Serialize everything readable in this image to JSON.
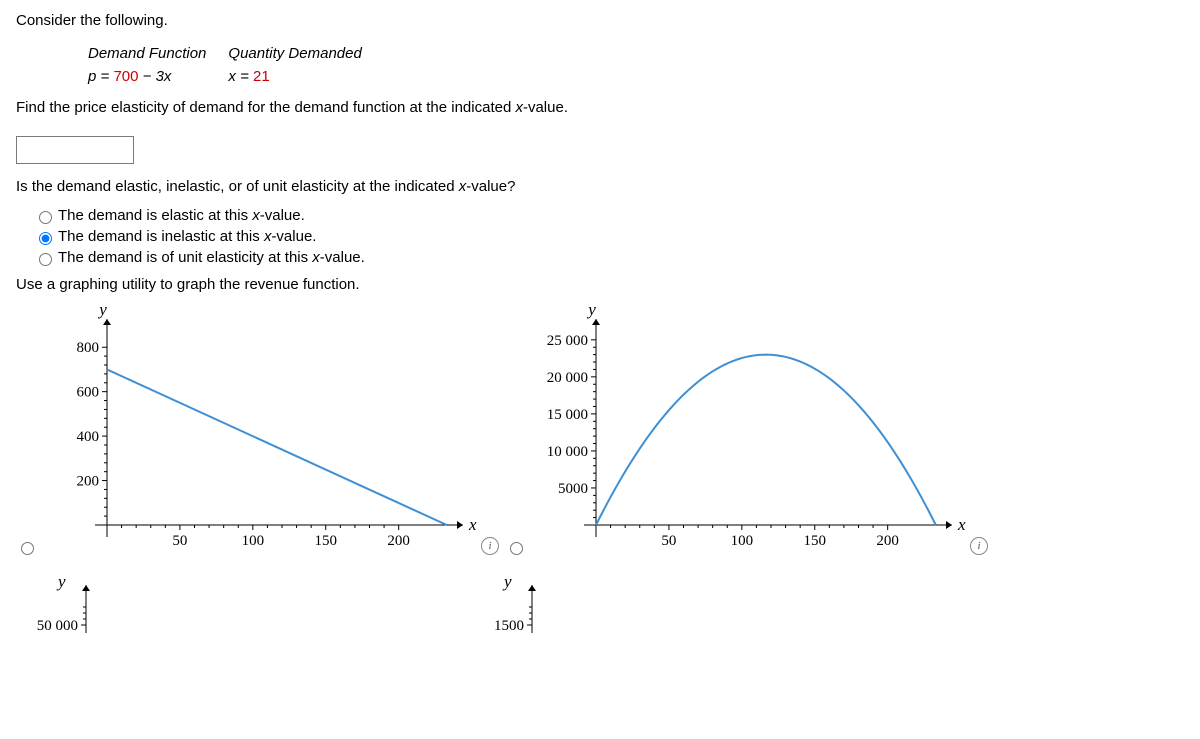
{
  "intro": "Consider the following.",
  "func_table": {
    "h1": "Demand Function",
    "h2": "Quantity Demanded",
    "r1_prefix": "p = ",
    "r1_num": "700",
    "r1_suffix": " − 3x",
    "r2_prefix": "x = ",
    "r2_num": "21"
  },
  "prompt1": "Find the price elasticity of demand for the demand function at the indicated x-value.",
  "prompt2": "Is the demand elastic, inelastic, or of unit elasticity at the indicated x-value?",
  "options": [
    "The demand is elastic at this x-value.",
    "The demand is inelastic at this x-value.",
    "The demand is of unit elasticity at this x-value."
  ],
  "selected_option": 1,
  "prompt3": "Use a graphing utility to graph the revenue function.",
  "chart1": {
    "type": "line",
    "yTicks": [
      200,
      400,
      600,
      800
    ],
    "xTicks": [
      50,
      100,
      150,
      200
    ],
    "ylim": [
      0,
      900
    ],
    "xlim": [
      0,
      240
    ],
    "line_color": "#3f8fd2",
    "line_width": 2,
    "points": [
      [
        0,
        700
      ],
      [
        233,
        0
      ]
    ],
    "axis_labels": {
      "x": "x",
      "y": "y"
    },
    "selected": false
  },
  "chart2": {
    "type": "line",
    "yTicks": [
      5000,
      10000,
      15000,
      20000,
      25000
    ],
    "yTickLabels": [
      "5000",
      "10 000",
      "15 000",
      "20 000",
      "25 000"
    ],
    "xTicks": [
      50,
      100,
      150,
      200
    ],
    "ylim": [
      0,
      27000
    ],
    "xlim": [
      0,
      240
    ],
    "line_color": "#3f8fd2",
    "line_width": 2,
    "curve": "parabola",
    "a": 0,
    "b": 233,
    "peak_y": 23000,
    "axis_labels": {
      "x": "x",
      "y": "y"
    },
    "selected": true
  },
  "chart3": {
    "type": "line",
    "yTicks": [
      50000
    ],
    "yTickLabels": [
      "50 000"
    ],
    "ylim": [
      0,
      55000
    ],
    "axis_labels": {
      "y": "y"
    }
  },
  "chart4": {
    "type": "line",
    "yTicks": [
      1500
    ],
    "yTickLabels": [
      "1500"
    ],
    "ylim": [
      0,
      1600
    ],
    "axis_labels": {
      "y": "y"
    }
  },
  "colors": {
    "axis": "#000000",
    "background": "#ffffff"
  }
}
